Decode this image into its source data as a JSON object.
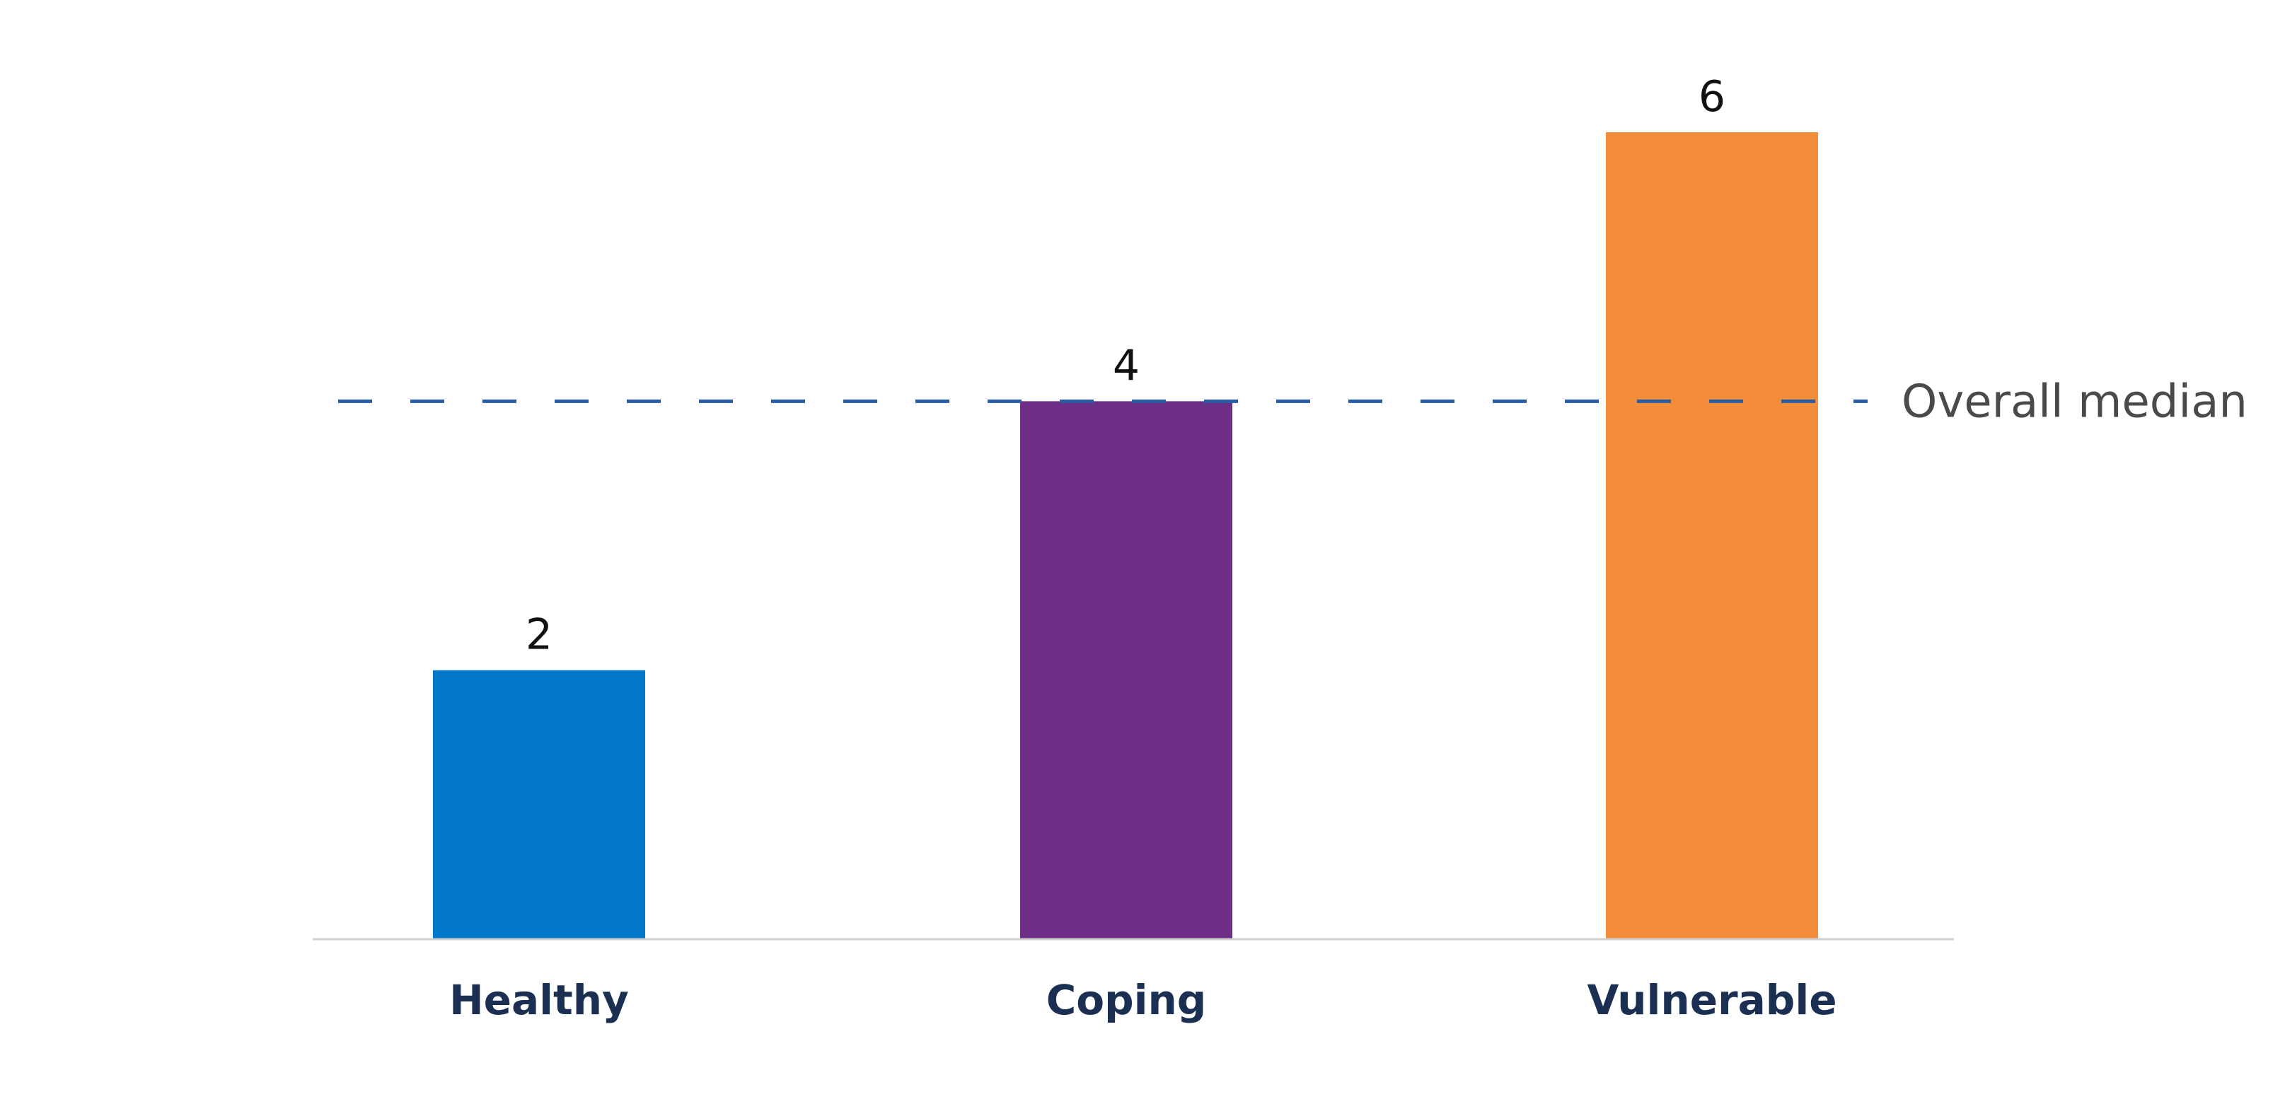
{
  "chart_data": {
    "type": "bar",
    "categories": [
      "Healthy",
      "Coping",
      "Vulnerable"
    ],
    "values": [
      2,
      4,
      6
    ],
    "value_labels": [
      "2",
      "4",
      "6"
    ],
    "colors": [
      "#0077c8",
      "#6e2e87",
      "#f48d3a"
    ],
    "reference_line": {
      "label": "Overall median",
      "value": 4,
      "color": "#2a5d9f",
      "style": "dashed"
    },
    "title": "",
    "xlabel": "",
    "ylabel": "",
    "ylim": [
      0,
      6
    ],
    "grid": false,
    "legend": "none"
  }
}
